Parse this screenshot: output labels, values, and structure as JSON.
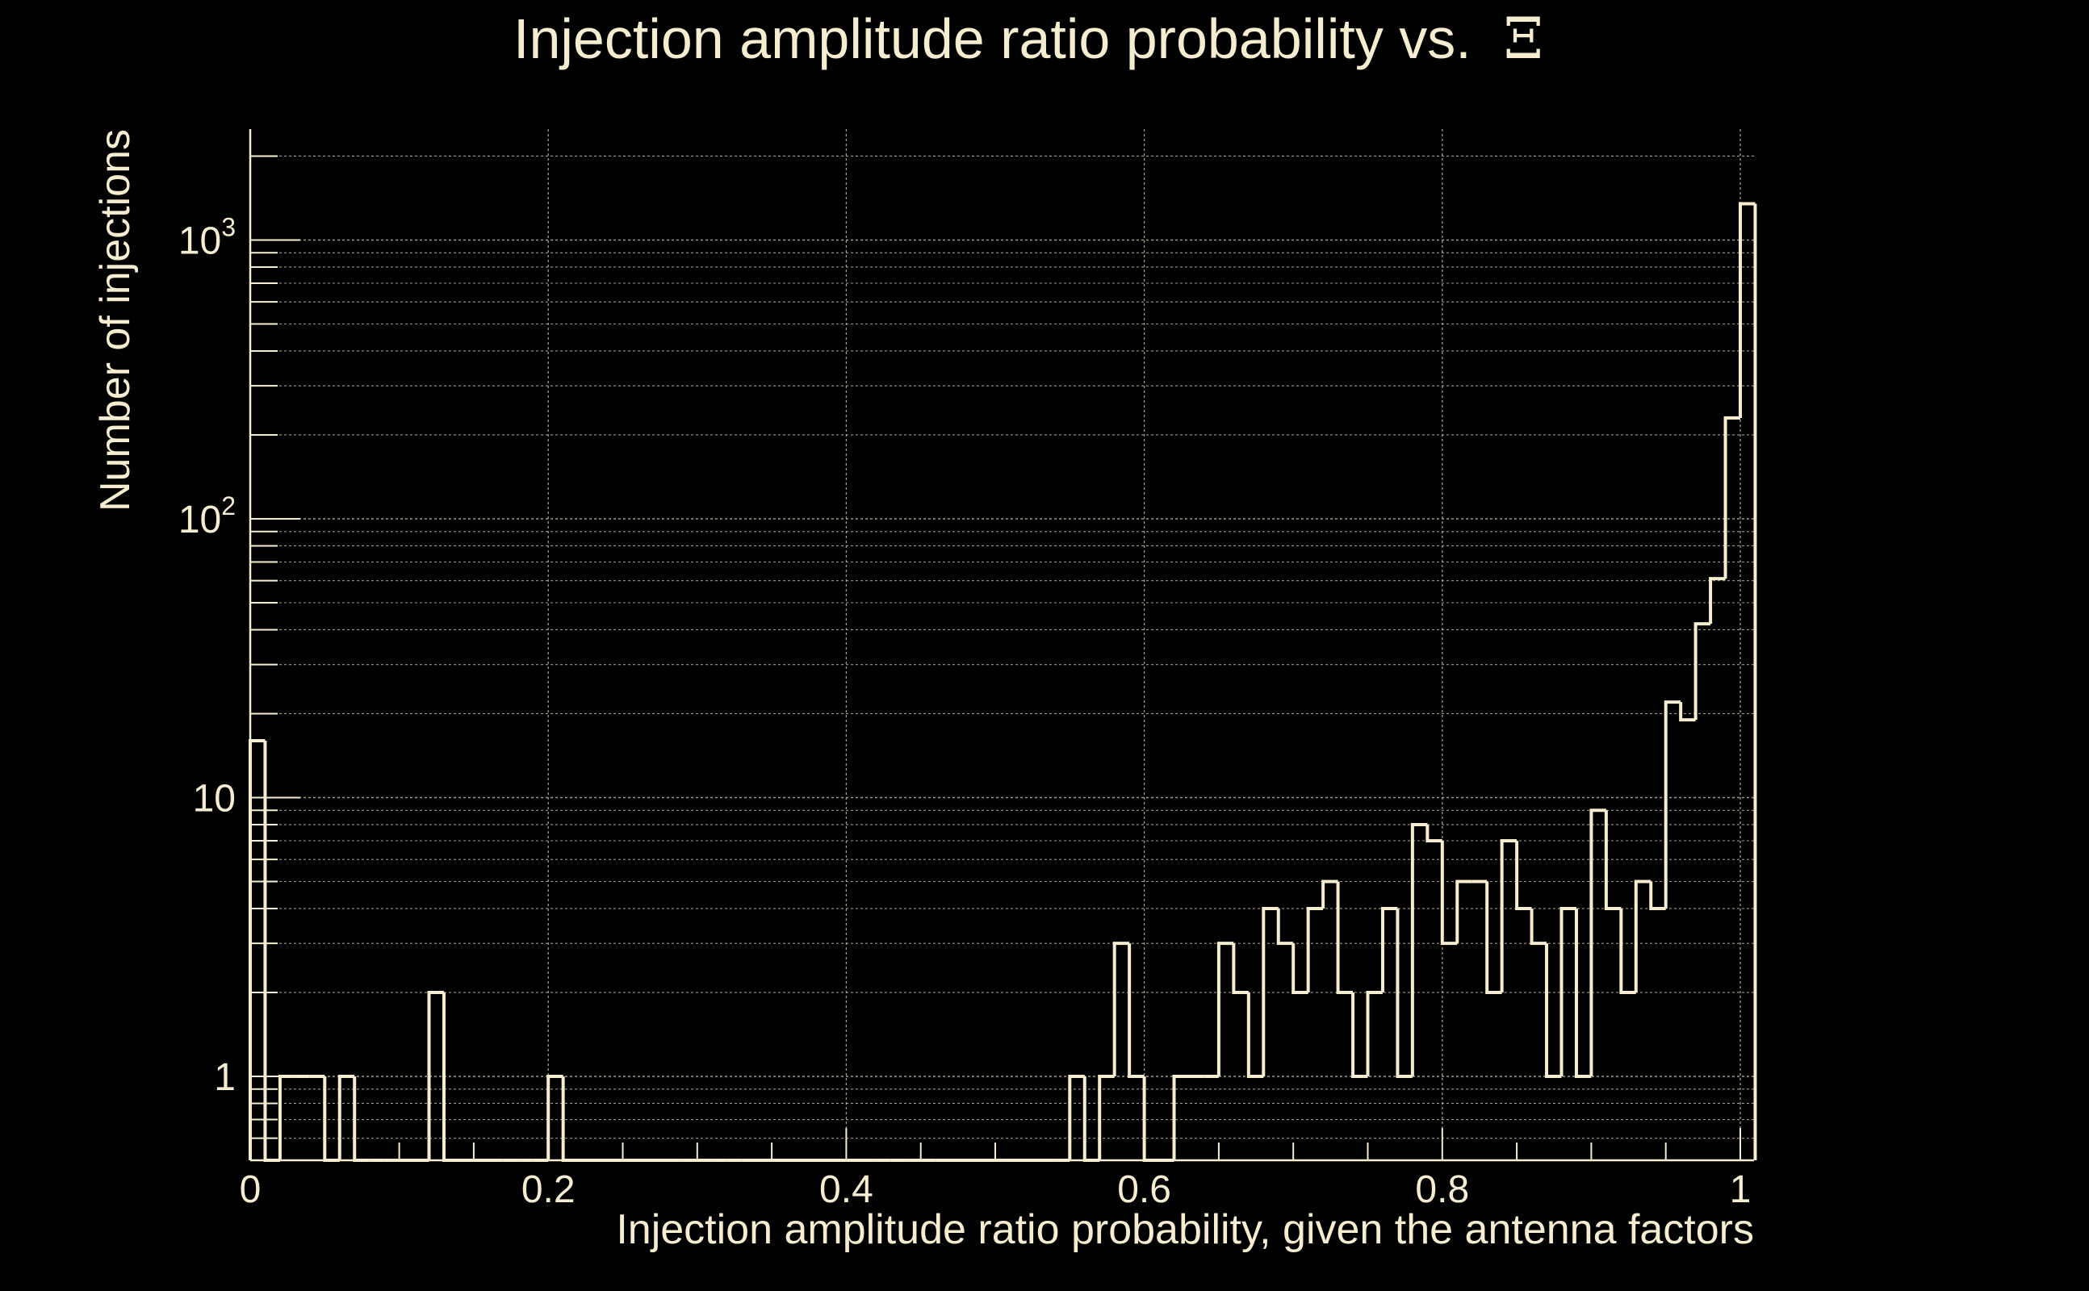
{
  "chart_data": {
    "type": "histogram",
    "title": "Injection amplitude ratio probability vs.",
    "title_symbol": "Ξ",
    "xlabel": "Injection amplitude ratio probability, given the antenna factors",
    "ylabel": "Number of injections",
    "xlim": [
      0,
      1.01
    ],
    "ylim": [
      0.5,
      2500
    ],
    "yscale": "log",
    "grid": true,
    "x_ticks": [
      "0",
      "0.2",
      "0.4",
      "0.6",
      "0.8",
      "1"
    ],
    "x_tick_values": [
      0,
      0.2,
      0.4,
      0.6,
      0.8,
      1
    ],
    "y_ticks": [
      {
        "value": 1,
        "base": "1",
        "exp": ""
      },
      {
        "value": 10,
        "base": "10",
        "exp": ""
      },
      {
        "value": 100,
        "base": "10",
        "exp": "2"
      },
      {
        "value": 1000,
        "base": "10",
        "exp": "3"
      }
    ],
    "bin_width": 0.01,
    "bin_start": 0,
    "values": [
      16,
      0,
      1,
      1,
      1,
      0,
      1,
      0,
      0,
      0,
      0,
      0,
      2,
      0,
      0,
      0,
      0,
      0,
      0,
      0,
      1,
      0,
      0,
      0,
      0,
      0,
      0,
      0,
      0,
      0,
      0,
      0,
      0,
      0,
      0,
      0,
      0,
      0,
      0,
      0,
      0,
      0,
      0,
      0,
      0,
      0,
      0,
      0,
      0,
      0,
      0,
      0,
      0,
      0,
      0,
      1,
      0,
      1,
      3,
      1,
      0,
      0,
      1,
      1,
      1,
      3,
      2,
      1,
      4,
      3,
      2,
      4,
      5,
      2,
      1,
      2,
      4,
      1,
      8,
      7,
      3,
      5,
      5,
      2,
      7,
      4,
      3,
      1,
      4,
      1,
      9,
      4,
      2,
      5,
      4,
      22,
      19,
      42,
      61,
      230,
      1350
    ],
    "colors": {
      "background": "#000000",
      "foreground": "#f6ecd0",
      "grid": "#bdb6a2"
    }
  }
}
